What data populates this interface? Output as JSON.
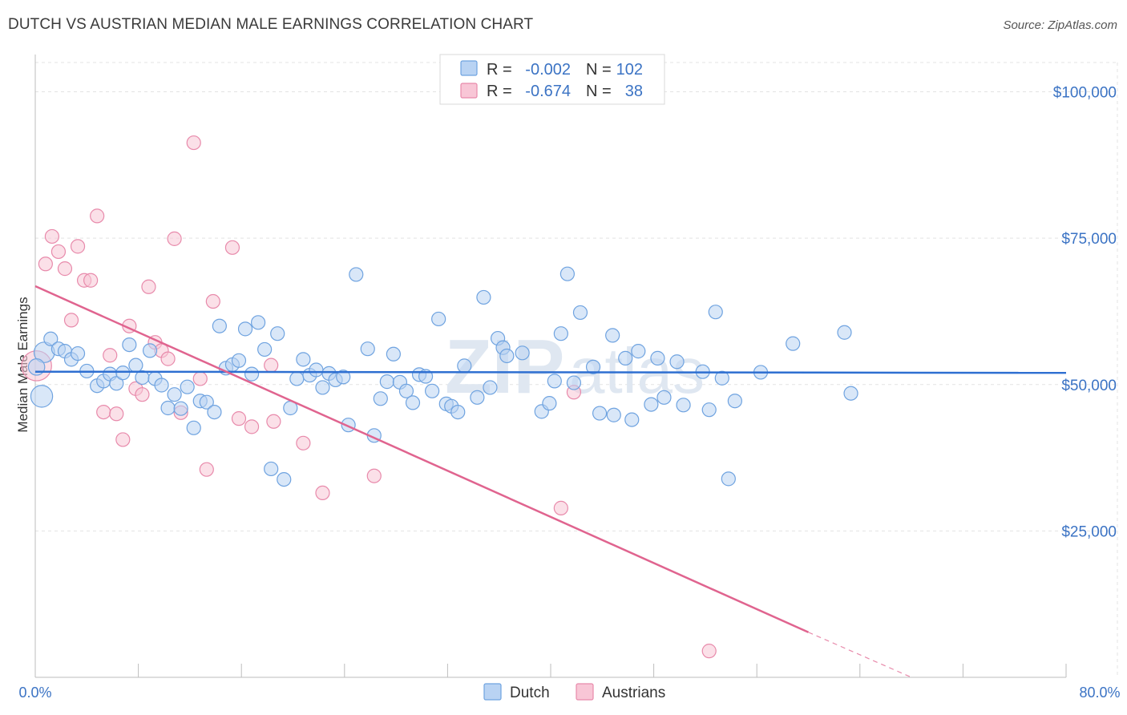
{
  "title": "DUTCH VS AUSTRIAN MEDIAN MALE EARNINGS CORRELATION CHART",
  "source": "Source: ZipAtlas.com",
  "watermark": "ZIPatlas",
  "chart_data": {
    "type": "scatter",
    "ylabel": "Median Male Earnings",
    "xlim": [
      0,
      80
    ],
    "ylim": [
      0,
      105000
    ],
    "xtick_labels": {
      "min": "0.0%",
      "max": "80.0%"
    },
    "yticks": [
      {
        "value": 25000,
        "label": "$25,000"
      },
      {
        "value": 50000,
        "label": "$50,000"
      },
      {
        "value": 75000,
        "label": "$75,000"
      },
      {
        "value": 100000,
        "label": "$100,000"
      }
    ],
    "legend": [
      {
        "name": "Dutch",
        "r_label": "R =",
        "r_value": "-0.002",
        "n_label": "N =",
        "n_value": "102",
        "color": "#6fa3e0",
        "fill": "#b9d3f3"
      },
      {
        "name": "Austrians",
        "r_label": "R =",
        "r_value": "-0.674",
        "n_label": "N =",
        "n_value": "38",
        "color": "#e88aab",
        "fill": "#f8c6d6"
      }
    ],
    "series": [
      {
        "name": "Dutch",
        "trend": {
          "x0": 0,
          "y0": 52200,
          "x1": 80,
          "y1": 52000
        },
        "points": [
          [
            0.5,
            48000,
            1.6
          ],
          [
            0.7,
            55500,
            1.5
          ],
          [
            1.2,
            57800,
            1.0
          ],
          [
            1.8,
            56100,
            1.0
          ],
          [
            2.3,
            55700,
            1.0
          ],
          [
            2.8,
            54300,
            1.0
          ],
          [
            3.3,
            55300,
            1.0
          ],
          [
            4.0,
            52300,
            1.0
          ],
          [
            4.8,
            49800,
            1.0
          ],
          [
            5.3,
            50600,
            1.0
          ],
          [
            5.8,
            51800,
            1.0
          ],
          [
            6.3,
            50200,
            1.0
          ],
          [
            6.8,
            52000,
            1.0
          ],
          [
            7.3,
            56800,
            1.0
          ],
          [
            7.8,
            53300,
            1.0
          ],
          [
            8.3,
            51200,
            1.0
          ],
          [
            8.9,
            55800,
            1.0
          ],
          [
            9.3,
            51000,
            1.0
          ],
          [
            9.8,
            49900,
            1.0
          ],
          [
            10.3,
            46000,
            1.0
          ],
          [
            10.8,
            48300,
            1.0
          ],
          [
            11.3,
            45900,
            1.0
          ],
          [
            11.8,
            49600,
            1.0
          ],
          [
            12.3,
            42600,
            1.0
          ],
          [
            12.8,
            47200,
            1.0
          ],
          [
            13.3,
            47000,
            1.0
          ],
          [
            13.9,
            45300,
            1.0
          ],
          [
            14.8,
            52800,
            1.0
          ],
          [
            15.3,
            53400,
            1.0
          ],
          [
            14.3,
            60000,
            1.0
          ],
          [
            15.8,
            54100,
            1.0
          ],
          [
            16.3,
            59500,
            1.0
          ],
          [
            16.8,
            51800,
            1.0
          ],
          [
            17.3,
            60600,
            1.0
          ],
          [
            17.8,
            56000,
            1.0
          ],
          [
            18.3,
            35600,
            1.0
          ],
          [
            18.8,
            58700,
            1.0
          ],
          [
            19.3,
            33800,
            1.0
          ],
          [
            19.8,
            46000,
            1.0
          ],
          [
            20.3,
            51000,
            1.0
          ],
          [
            20.8,
            54300,
            1.0
          ],
          [
            21.3,
            51600,
            1.0
          ],
          [
            21.8,
            52500,
            1.0
          ],
          [
            22.3,
            49500,
            1.0
          ],
          [
            22.8,
            51900,
            1.0
          ],
          [
            23.3,
            50800,
            1.0
          ],
          [
            23.9,
            51300,
            1.0
          ],
          [
            24.3,
            43100,
            1.0
          ],
          [
            24.9,
            68800,
            1.0
          ],
          [
            25.8,
            56100,
            1.0
          ],
          [
            26.3,
            41300,
            1.0
          ],
          [
            26.8,
            47600,
            1.0
          ],
          [
            27.3,
            50500,
            1.0
          ],
          [
            27.8,
            55200,
            1.0
          ],
          [
            28.3,
            50400,
            1.0
          ],
          [
            28.8,
            48900,
            1.0
          ],
          [
            29.3,
            46900,
            1.0
          ],
          [
            29.8,
            51700,
            1.0
          ],
          [
            30.3,
            51400,
            1.0
          ],
          [
            30.8,
            48900,
            1.0
          ],
          [
            31.3,
            61200,
            1.0
          ],
          [
            31.9,
            46700,
            1.0
          ],
          [
            32.3,
            46300,
            1.0
          ],
          [
            32.8,
            45300,
            1.0
          ],
          [
            33.3,
            53200,
            1.0
          ],
          [
            34.3,
            47800,
            1.0
          ],
          [
            34.8,
            64900,
            1.0
          ],
          [
            35.3,
            49500,
            1.0
          ],
          [
            35.9,
            57900,
            1.0
          ],
          [
            36.3,
            56300,
            1.0
          ],
          [
            36.6,
            54900,
            1.0
          ],
          [
            37.8,
            55400,
            1.0
          ],
          [
            39.3,
            45400,
            1.0
          ],
          [
            39.9,
            46800,
            1.0
          ],
          [
            40.3,
            50600,
            1.0
          ],
          [
            40.8,
            58700,
            1.0
          ],
          [
            41.3,
            68900,
            1.0
          ],
          [
            41.8,
            50300,
            1.0
          ],
          [
            42.3,
            62300,
            1.0
          ],
          [
            43.3,
            53000,
            1.0
          ],
          [
            43.8,
            45100,
            1.0
          ],
          [
            44.8,
            58400,
            1.0
          ],
          [
            44.9,
            44800,
            1.0
          ],
          [
            45.8,
            54500,
            1.0
          ],
          [
            46.3,
            44000,
            1.0
          ],
          [
            46.8,
            55700,
            1.0
          ],
          [
            47.8,
            46600,
            1.0
          ],
          [
            48.3,
            54500,
            1.0
          ],
          [
            48.8,
            47800,
            1.0
          ],
          [
            49.8,
            53900,
            1.0
          ],
          [
            50.3,
            46500,
            1.0
          ],
          [
            51.8,
            52200,
            1.0
          ],
          [
            52.3,
            45700,
            1.0
          ],
          [
            52.8,
            62400,
            1.0
          ],
          [
            53.3,
            51100,
            1.0
          ],
          [
            53.8,
            33900,
            1.0
          ],
          [
            54.3,
            47200,
            1.0
          ],
          [
            56.3,
            52100,
            1.0
          ],
          [
            58.8,
            57000,
            1.0
          ],
          [
            62.8,
            58900,
            1.0
          ],
          [
            63.3,
            48500,
            1.0
          ],
          [
            0.1,
            53000,
            1.2
          ]
        ]
      },
      {
        "name": "Austrians",
        "trend": {
          "x0": 0,
          "y0": 66800,
          "x1": 60,
          "y1": 7700
        },
        "trend_dashed_to": {
          "x": 68,
          "y": 0
        },
        "points": [
          [
            0.1,
            53200,
            2.2
          ],
          [
            0.8,
            70600,
            1.0
          ],
          [
            1.3,
            75300,
            1.0
          ],
          [
            1.8,
            72700,
            1.0
          ],
          [
            2.3,
            69800,
            1.0
          ],
          [
            2.8,
            61000,
            1.0
          ],
          [
            3.3,
            73600,
            1.0
          ],
          [
            3.8,
            67800,
            1.0
          ],
          [
            4.3,
            67800,
            1.0
          ],
          [
            4.8,
            78800,
            1.0
          ],
          [
            5.3,
            45300,
            1.0
          ],
          [
            5.8,
            55000,
            1.0
          ],
          [
            6.3,
            45000,
            1.0
          ],
          [
            6.8,
            40600,
            1.0
          ],
          [
            7.3,
            60000,
            1.0
          ],
          [
            7.8,
            49300,
            1.0
          ],
          [
            8.3,
            48300,
            1.0
          ],
          [
            8.8,
            66700,
            1.0
          ],
          [
            9.3,
            57200,
            1.0
          ],
          [
            9.8,
            55800,
            1.0
          ],
          [
            10.3,
            54400,
            1.0
          ],
          [
            10.8,
            74900,
            1.0
          ],
          [
            11.3,
            45200,
            1.0
          ],
          [
            12.3,
            91300,
            1.0
          ],
          [
            12.8,
            51000,
            1.0
          ],
          [
            13.3,
            35500,
            1.0
          ],
          [
            13.8,
            64200,
            1.0
          ],
          [
            15.3,
            73400,
            1.0
          ],
          [
            15.8,
            44200,
            1.0
          ],
          [
            16.8,
            42800,
            1.0
          ],
          [
            18.3,
            53300,
            1.0
          ],
          [
            18.5,
            43700,
            1.0
          ],
          [
            20.8,
            40000,
            1.0
          ],
          [
            22.3,
            31500,
            1.0
          ],
          [
            26.3,
            34400,
            1.0
          ],
          [
            40.8,
            28900,
            1.0
          ],
          [
            41.8,
            48700,
            1.0
          ],
          [
            52.3,
            4500,
            1.0
          ]
        ]
      }
    ]
  }
}
